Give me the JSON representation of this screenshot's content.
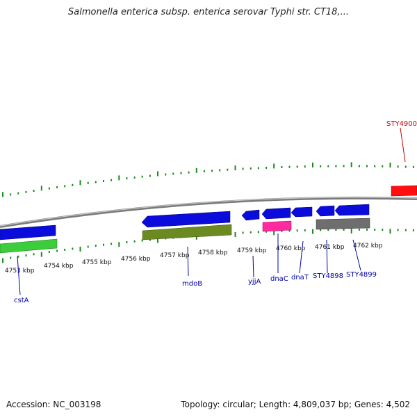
{
  "title": "Salmonella enterica subsp. enterica serovar Typhi str. CT18,...",
  "footer": {
    "accession": "Accession: NC_003198",
    "topology": "Topology: circular; Length: 4,809,037 bp; Genes: 4,502"
  },
  "kbp_labels": [
    "4753 kbp",
    "4754 kbp",
    "4755 kbp",
    "4756 kbp",
    "4757 kbp",
    "4758 kbp",
    "4759 kbp",
    "4760 kbp",
    "4761 kbp",
    "4762 kbp"
  ],
  "gene_labels": [
    {
      "name": "cstA",
      "color": "#0000aa"
    },
    {
      "name": "mdoB",
      "color": "#0000aa"
    },
    {
      "name": "yjjA",
      "color": "#0000aa"
    },
    {
      "name": "dnaC",
      "color": "#0000aa"
    },
    {
      "name": "dnaT",
      "color": "#0000aa"
    },
    {
      "name": "STY4898",
      "color": "#0000aa"
    },
    {
      "name": "STY4899",
      "color": "#0000aa"
    },
    {
      "name": "STY4900",
      "color": "#cc0000"
    }
  ],
  "colors": {
    "backbone": "#8a8a8a",
    "cds": "#0b0bdc",
    "gene": "#3ccc3c",
    "mdoB_gene": "#6b8a22",
    "misc": "#ff2aa0",
    "other": "#6e6e6e",
    "highlight": "#ff1010",
    "tick": "#1a8a1a"
  }
}
